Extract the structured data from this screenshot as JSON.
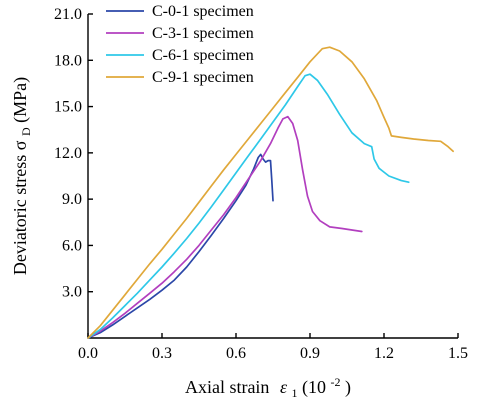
{
  "chart_data": {
    "type": "line",
    "xlabel": {
      "main": "Axial strain",
      "symbol": "ε",
      "sub": "1",
      "unit": "(10",
      "exp": "-2",
      "close": ")"
    },
    "ylabel": {
      "main": "Deviatoric stress σ",
      "sub": "D",
      "unit": "(MPa)"
    },
    "xlim": [
      0,
      1.5
    ],
    "ylim": [
      0,
      21
    ],
    "x_ticks": [
      0.0,
      0.3,
      0.6,
      0.9,
      1.2,
      1.5
    ],
    "x_tick_labels": [
      "0.0",
      "0.3",
      "0.6",
      "0.9",
      "1.2",
      "1.5"
    ],
    "y_ticks": [
      3.0,
      6.0,
      9.0,
      12.0,
      15.0,
      18.0,
      21.0
    ],
    "y_tick_labels": [
      "3.0",
      "6.0",
      "9.0",
      "12.0",
      "15.0",
      "18.0",
      "21.0"
    ],
    "legend_position": "top-left",
    "series": [
      {
        "name": "C-0-1 specimen",
        "color": "#2b47a8",
        "points": [
          [
            0,
            0
          ],
          [
            0.05,
            0.35
          ],
          [
            0.1,
            0.85
          ],
          [
            0.15,
            1.4
          ],
          [
            0.2,
            1.95
          ],
          [
            0.25,
            2.5
          ],
          [
            0.3,
            3.1
          ],
          [
            0.35,
            3.75
          ],
          [
            0.4,
            4.6
          ],
          [
            0.45,
            5.6
          ],
          [
            0.5,
            6.65
          ],
          [
            0.55,
            7.75
          ],
          [
            0.6,
            8.9
          ],
          [
            0.64,
            9.9
          ],
          [
            0.67,
            10.9
          ],
          [
            0.69,
            11.7
          ],
          [
            0.7,
            11.9
          ],
          [
            0.71,
            11.6
          ],
          [
            0.72,
            11.4
          ],
          [
            0.73,
            11.5
          ],
          [
            0.74,
            11.5
          ],
          [
            0.745,
            10.2
          ],
          [
            0.75,
            8.9
          ]
        ]
      },
      {
        "name": "C-3-1 specimen",
        "color": "#b23fbf",
        "points": [
          [
            0,
            0
          ],
          [
            0.05,
            0.45
          ],
          [
            0.1,
            1.0
          ],
          [
            0.15,
            1.6
          ],
          [
            0.2,
            2.25
          ],
          [
            0.25,
            2.9
          ],
          [
            0.3,
            3.55
          ],
          [
            0.35,
            4.3
          ],
          [
            0.4,
            5.1
          ],
          [
            0.45,
            6.0
          ],
          [
            0.5,
            7.0
          ],
          [
            0.55,
            8.0
          ],
          [
            0.6,
            9.1
          ],
          [
            0.65,
            10.3
          ],
          [
            0.7,
            11.5
          ],
          [
            0.74,
            12.6
          ],
          [
            0.77,
            13.6
          ],
          [
            0.79,
            14.2
          ],
          [
            0.81,
            14.35
          ],
          [
            0.83,
            13.9
          ],
          [
            0.85,
            12.8
          ],
          [
            0.87,
            10.9
          ],
          [
            0.89,
            9.2
          ],
          [
            0.91,
            8.2
          ],
          [
            0.94,
            7.6
          ],
          [
            0.98,
            7.2
          ],
          [
            1.03,
            7.1
          ],
          [
            1.07,
            7.0
          ],
          [
            1.11,
            6.9
          ]
        ]
      },
      {
        "name": "C-6-1 specimen",
        "color": "#2ec8e8",
        "points": [
          [
            0,
            0
          ],
          [
            0.05,
            0.55
          ],
          [
            0.1,
            1.3
          ],
          [
            0.15,
            2.1
          ],
          [
            0.2,
            2.9
          ],
          [
            0.25,
            3.75
          ],
          [
            0.3,
            4.6
          ],
          [
            0.35,
            5.5
          ],
          [
            0.4,
            6.45
          ],
          [
            0.45,
            7.45
          ],
          [
            0.5,
            8.5
          ],
          [
            0.55,
            9.6
          ],
          [
            0.6,
            10.7
          ],
          [
            0.65,
            11.8
          ],
          [
            0.7,
            12.9
          ],
          [
            0.75,
            14.0
          ],
          [
            0.8,
            15.1
          ],
          [
            0.85,
            16.3
          ],
          [
            0.88,
            17.0
          ],
          [
            0.9,
            17.1
          ],
          [
            0.93,
            16.7
          ],
          [
            0.97,
            15.8
          ],
          [
            1.02,
            14.5
          ],
          [
            1.07,
            13.3
          ],
          [
            1.12,
            12.6
          ],
          [
            1.15,
            12.4
          ],
          [
            1.16,
            11.6
          ],
          [
            1.18,
            11.0
          ],
          [
            1.22,
            10.5
          ],
          [
            1.27,
            10.2
          ],
          [
            1.3,
            10.1
          ]
        ]
      },
      {
        "name": "C-9-1 specimen",
        "color": "#e0a83a",
        "points": [
          [
            0,
            0
          ],
          [
            0.05,
            0.8
          ],
          [
            0.1,
            1.8
          ],
          [
            0.15,
            2.8
          ],
          [
            0.2,
            3.8
          ],
          [
            0.25,
            4.8
          ],
          [
            0.3,
            5.75
          ],
          [
            0.35,
            6.75
          ],
          [
            0.4,
            7.75
          ],
          [
            0.45,
            8.8
          ],
          [
            0.5,
            9.85
          ],
          [
            0.55,
            10.9
          ],
          [
            0.6,
            11.9
          ],
          [
            0.65,
            12.9
          ],
          [
            0.7,
            13.9
          ],
          [
            0.75,
            14.9
          ],
          [
            0.8,
            15.9
          ],
          [
            0.85,
            16.9
          ],
          [
            0.9,
            17.9
          ],
          [
            0.95,
            18.75
          ],
          [
            0.98,
            18.85
          ],
          [
            1.02,
            18.6
          ],
          [
            1.07,
            17.9
          ],
          [
            1.12,
            16.8
          ],
          [
            1.17,
            15.4
          ],
          [
            1.2,
            14.3
          ],
          [
            1.22,
            13.6
          ],
          [
            1.23,
            13.1
          ],
          [
            1.27,
            13.0
          ],
          [
            1.32,
            12.9
          ],
          [
            1.38,
            12.8
          ],
          [
            1.43,
            12.75
          ],
          [
            1.46,
            12.4
          ],
          [
            1.48,
            12.1
          ]
        ]
      }
    ]
  }
}
